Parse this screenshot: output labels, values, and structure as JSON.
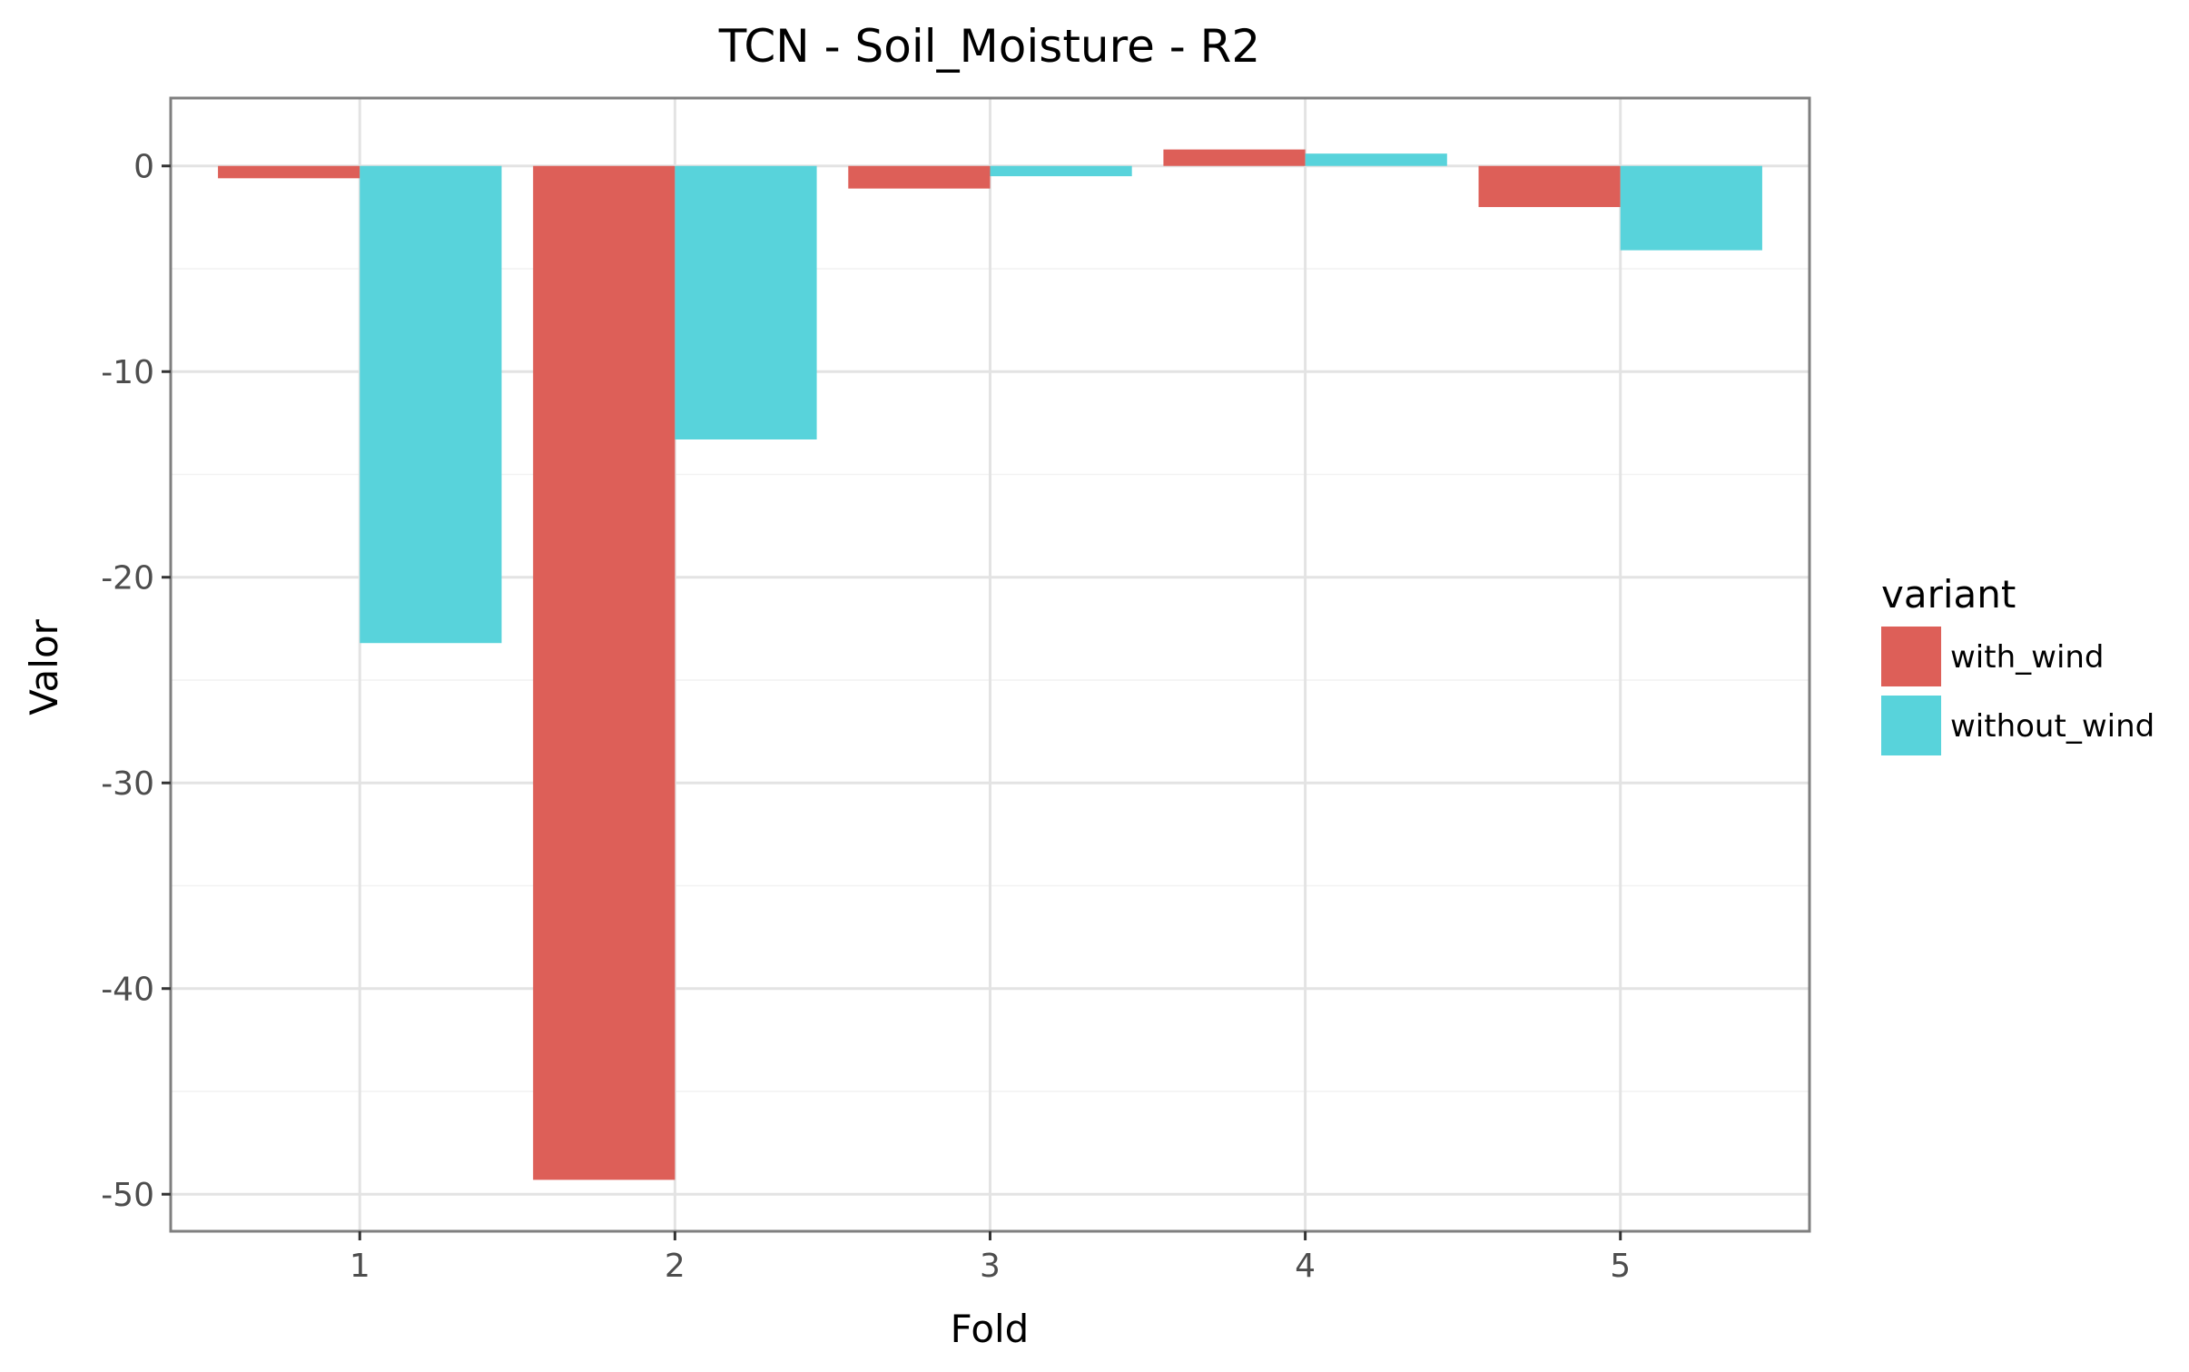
{
  "chart_data": {
    "type": "bar",
    "title": "TCN - Soil_Moisture - R2",
    "xlabel": "Fold",
    "ylabel": "Valor",
    "categories": [
      "1",
      "2",
      "3",
      "4",
      "5"
    ],
    "series": [
      {
        "name": "with_wind",
        "color": "#dd5f58",
        "values": [
          -0.6,
          -49.3,
          -1.1,
          0.8,
          -2.0
        ]
      },
      {
        "name": "without_wind",
        "color": "#58d3db",
        "values": [
          -23.2,
          -13.3,
          -0.5,
          0.6,
          -4.1
        ]
      }
    ],
    "ylim": [
      -51.8,
      3.3
    ],
    "yticks": [
      0,
      -10,
      -20,
      -30,
      -40,
      -50
    ],
    "ytick_labels": [
      "0",
      "-10",
      "-20",
      "-30",
      "-40",
      "-50"
    ],
    "grid": true,
    "legend": {
      "title": "variant",
      "position": "right"
    }
  }
}
